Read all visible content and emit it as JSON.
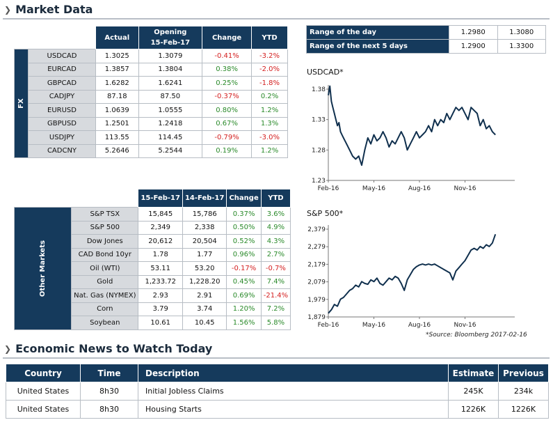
{
  "market_title": "Market Data",
  "fx": {
    "side_label": "FX",
    "headers": [
      "Actual",
      "Opening\n15-Feb-17",
      "Change",
      "YTD"
    ],
    "header_open_line1": "Opening",
    "header_open_line2": "15-Feb-17",
    "rows": [
      {
        "name": "USDCAD",
        "actual": "1.3025",
        "opening": "1.3079",
        "change": "-0.41%",
        "ytd": "-3.2%"
      },
      {
        "name": "EURCAD",
        "actual": "1.3857",
        "opening": "1.3804",
        "change": "0.38%",
        "ytd": "-2.0%"
      },
      {
        "name": "GBPCAD",
        "actual": "1.6282",
        "opening": "1.6241",
        "change": "0.25%",
        "ytd": "-1.8%"
      },
      {
        "name": "CADJPY",
        "actual": "87.18",
        "opening": "87.50",
        "change": "-0.37%",
        "ytd": "0.2%"
      },
      {
        "name": "EURUSD",
        "actual": "1.0639",
        "opening": "1.0555",
        "change": "0.80%",
        "ytd": "1.2%"
      },
      {
        "name": "GBPUSD",
        "actual": "1.2501",
        "opening": "1.2418",
        "change": "0.67%",
        "ytd": "1.3%"
      },
      {
        "name": "USDJPY",
        "actual": "113.55",
        "opening": "114.45",
        "change": "-0.79%",
        "ytd": "-3.0%"
      },
      {
        "name": "CADCNY",
        "actual": "5.2646",
        "opening": "5.2544",
        "change": "0.19%",
        "ytd": "1.2%"
      }
    ]
  },
  "other": {
    "side_label": "Other Markets",
    "h1": "15-Feb-17",
    "h2": "14-Feb-17",
    "h3": "Change",
    "h4": "YTD",
    "rows": [
      {
        "name": "S&P TSX",
        "a": "15,845",
        "b": "15,786",
        "change": "0.37%",
        "ytd": "3.6%"
      },
      {
        "name": "S&P 500",
        "a": "2,349",
        "b": "2,338",
        "change": "0.50%",
        "ytd": "4.9%"
      },
      {
        "name": "Dow Jones",
        "a": "20,612",
        "b": "20,504",
        "change": "0.52%",
        "ytd": "4.3%"
      },
      {
        "name": "CAD Bond 10yr",
        "a": "1.78",
        "b": "1.77",
        "change": "0.96%",
        "ytd": "2.7%"
      },
      {
        "name": "Oil (WTI)",
        "a": "53.11",
        "b": "53.20",
        "change": "-0.17%",
        "ytd": "-0.7%"
      },
      {
        "name": "Gold",
        "a": "1,233.72",
        "b": "1,228.20",
        "change": "0.45%",
        "ytd": "7.4%"
      },
      {
        "name": "Nat. Gas (NYMEX)",
        "a": "2.93",
        "b": "2.91",
        "change": "0.69%",
        "ytd": "-21.4%"
      },
      {
        "name": "Corn",
        "a": "3.79",
        "b": "3.74",
        "change": "1.20%",
        "ytd": "7.2%"
      },
      {
        "name": "Soybean",
        "a": "10.61",
        "b": "10.45",
        "change": "1.56%",
        "ytd": "5.8%"
      }
    ]
  },
  "range": [
    {
      "label": "Range of the day",
      "low": "1.2980",
      "high": "1.3080"
    },
    {
      "label": "Range of the next 5 days",
      "low": "1.2900",
      "high": "1.3300"
    }
  ],
  "colors": {
    "header": "#153a5c",
    "label_bg": "#d7dade",
    "positive": "#2a8a2a",
    "negative": "#d42020"
  },
  "chart_data": [
    {
      "type": "line",
      "title": "USDCAD*",
      "ylim": [
        1.23,
        1.38
      ],
      "yticks": [
        "1.38",
        "1.33",
        "1.28",
        "1.23"
      ],
      "ytick_values": [
        1.38,
        1.33,
        1.28,
        1.23
      ],
      "xticks": [
        "Feb-16",
        "May-16",
        "Aug-16",
        "Nov-16"
      ],
      "xtick_positions": [
        0,
        3,
        6,
        9
      ],
      "x_range": [
        0,
        12
      ],
      "x": [
        0,
        0.1,
        0.2,
        0.3,
        0.4,
        0.5,
        0.6,
        0.7,
        0.8,
        0.9,
        1.0,
        1.2,
        1.4,
        1.6,
        1.8,
        2.0,
        2.2,
        2.4,
        2.6,
        2.8,
        3.0,
        3.2,
        3.4,
        3.6,
        3.8,
        4.0,
        4.2,
        4.4,
        4.6,
        4.8,
        5.0,
        5.2,
        5.4,
        5.6,
        5.8,
        6.0,
        6.2,
        6.4,
        6.6,
        6.8,
        7.0,
        7.2,
        7.4,
        7.6,
        7.8,
        8.0,
        8.2,
        8.4,
        8.6,
        8.8,
        9.0,
        9.2,
        9.4,
        9.6,
        9.8,
        10.0,
        10.2,
        10.4,
        10.6,
        10.8,
        11.0
      ],
      "values": [
        1.37,
        1.385,
        1.36,
        1.35,
        1.34,
        1.33,
        1.32,
        1.325,
        1.31,
        1.305,
        1.3,
        1.29,
        1.28,
        1.27,
        1.265,
        1.27,
        1.255,
        1.28,
        1.3,
        1.29,
        1.305,
        1.295,
        1.3,
        1.31,
        1.3,
        1.285,
        1.295,
        1.29,
        1.3,
        1.31,
        1.3,
        1.28,
        1.29,
        1.3,
        1.31,
        1.3,
        1.305,
        1.31,
        1.32,
        1.31,
        1.33,
        1.32,
        1.33,
        1.325,
        1.34,
        1.33,
        1.34,
        1.35,
        1.345,
        1.35,
        1.34,
        1.33,
        1.35,
        1.345,
        1.34,
        1.32,
        1.33,
        1.315,
        1.32,
        1.31,
        1.305
      ]
    },
    {
      "type": "line",
      "title": "S&P 500*",
      "ylim": [
        1879,
        2379
      ],
      "yticks": [
        "2,379",
        "2,279",
        "2,179",
        "2,079",
        "1,979",
        "1,879"
      ],
      "ytick_values": [
        2379,
        2279,
        2179,
        2079,
        1979,
        1879
      ],
      "xticks": [
        "Feb-16",
        "May-16",
        "Aug-16",
        "Nov-16"
      ],
      "xtick_positions": [
        0,
        3,
        6,
        9
      ],
      "x_range": [
        0,
        12
      ],
      "x": [
        0,
        0.2,
        0.4,
        0.6,
        0.8,
        1.0,
        1.2,
        1.4,
        1.6,
        1.8,
        2.0,
        2.2,
        2.4,
        2.6,
        2.8,
        3.0,
        3.2,
        3.4,
        3.6,
        3.8,
        4.0,
        4.2,
        4.4,
        4.6,
        4.8,
        5.0,
        5.2,
        5.4,
        5.6,
        5.8,
        6.0,
        6.2,
        6.4,
        6.6,
        6.8,
        7.0,
        7.2,
        7.4,
        7.6,
        7.8,
        8.0,
        8.2,
        8.4,
        8.6,
        8.8,
        9.0,
        9.2,
        9.4,
        9.6,
        9.8,
        10.0,
        10.2,
        10.4,
        10.6,
        10.8,
        11.0
      ],
      "values": [
        1900,
        1920,
        1950,
        1940,
        1980,
        1990,
        2010,
        2030,
        2040,
        2060,
        2050,
        2080,
        2070,
        2065,
        2090,
        2080,
        2100,
        2070,
        2060,
        2080,
        2100,
        2090,
        2110,
        2100,
        2070,
        2030,
        2090,
        2120,
        2150,
        2165,
        2175,
        2180,
        2175,
        2180,
        2175,
        2180,
        2170,
        2160,
        2150,
        2140,
        2130,
        2090,
        2140,
        2160,
        2180,
        2200,
        2230,
        2260,
        2270,
        2260,
        2280,
        2270,
        2290,
        2280,
        2300,
        2350
      ]
    }
  ],
  "source": "*Source: Bloomberg  2017-02-16",
  "news_title": "Economic News to Watch Today",
  "news": {
    "headers": {
      "country": "Country",
      "time": "Time",
      "description": "Description",
      "estimate": "Estimate",
      "previous": "Previous"
    },
    "rows": [
      {
        "country": "United States",
        "time": "8h30",
        "description": "Initial Jobless Claims",
        "estimate": "245K",
        "previous": "234k"
      },
      {
        "country": "United States",
        "time": "8h30",
        "description": "Housing Starts",
        "estimate": "1226K",
        "previous": "1226K"
      }
    ]
  }
}
